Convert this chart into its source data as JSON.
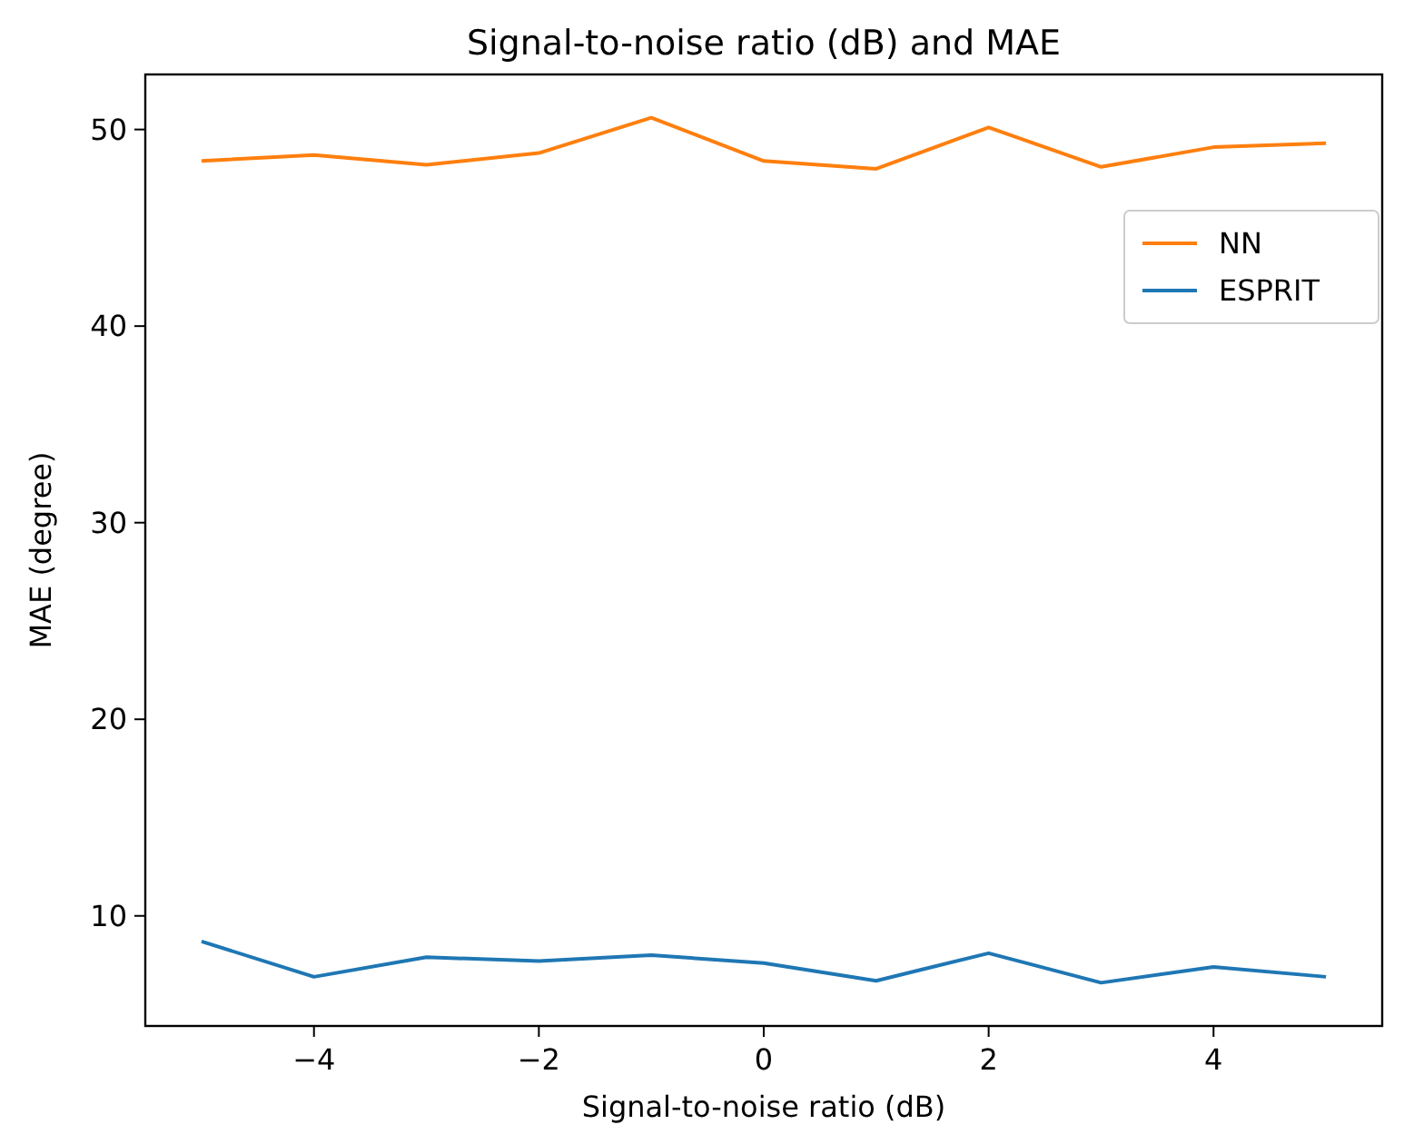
{
  "chart_data": {
    "type": "line",
    "title": "Signal-to-noise ratio (dB) and MAE",
    "xlabel": "Signal-to-noise ratio (dB)",
    "ylabel": "MAE (degree)",
    "x": [
      -5,
      -4,
      -3,
      -2,
      -1,
      0,
      1,
      2,
      3,
      4,
      5
    ],
    "series": [
      {
        "name": "NN",
        "color": "#ff7f0e",
        "values": [
          48.4,
          48.7,
          48.2,
          48.8,
          50.6,
          48.4,
          48.0,
          50.1,
          48.1,
          49.1,
          49.3
        ]
      },
      {
        "name": "ESPRIT",
        "color": "#1f77b4",
        "values": [
          8.7,
          6.9,
          7.9,
          7.7,
          8.0,
          7.6,
          6.7,
          8.1,
          6.6,
          7.4,
          6.9
        ]
      }
    ],
    "xlim": [
      -5.5,
      5.5
    ],
    "xticks": [
      {
        "value": -4,
        "label": "−4"
      },
      {
        "value": -2,
        "label": "−2"
      },
      0,
      2,
      4
    ],
    "ylim": [
      4.4,
      52.8
    ],
    "yticks": [
      10,
      20,
      30,
      40,
      50
    ],
    "legend": "top right",
    "grid": false,
    "marker": "none",
    "line_style": "solid"
  }
}
